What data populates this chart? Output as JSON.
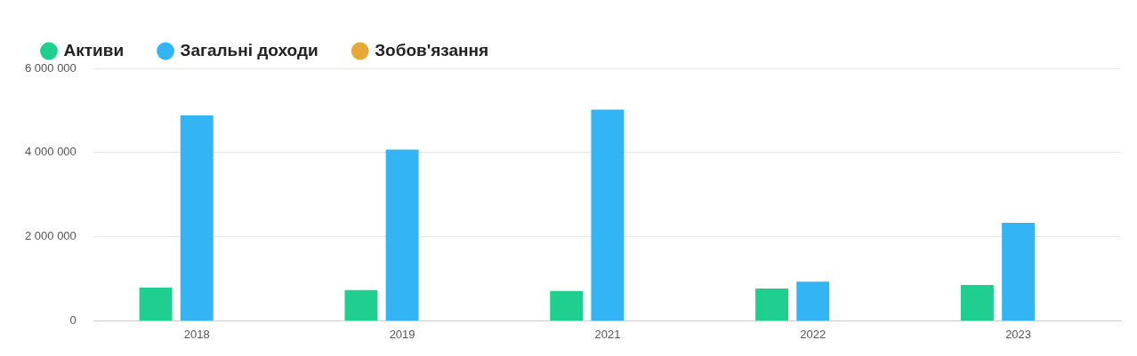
{
  "chart_data": {
    "type": "bar",
    "categories": [
      "2018",
      "2019",
      "2021",
      "2022",
      "2023"
    ],
    "series": [
      {
        "name": "Активи",
        "color": "#1ecf8f",
        "values": [
          790000,
          730000,
          710000,
          770000,
          850000
        ]
      },
      {
        "name": "Загальні доходи",
        "color": "#33b5f5",
        "values": [
          4880000,
          4070000,
          5020000,
          930000,
          2330000
        ]
      },
      {
        "name": "Зобов'язання",
        "color": "#e8a838",
        "values": [
          0,
          0,
          0,
          0,
          0
        ]
      }
    ],
    "ylim": [
      0,
      6000000
    ],
    "yticks": [
      {
        "value": 0,
        "label": "0"
      },
      {
        "value": 2000000,
        "label": "2 000 000"
      },
      {
        "value": 4000000,
        "label": "4 000 000"
      },
      {
        "value": 6000000,
        "label": "6 000 000"
      }
    ],
    "grid": "y",
    "legend": "top left",
    "marker": "circle"
  }
}
